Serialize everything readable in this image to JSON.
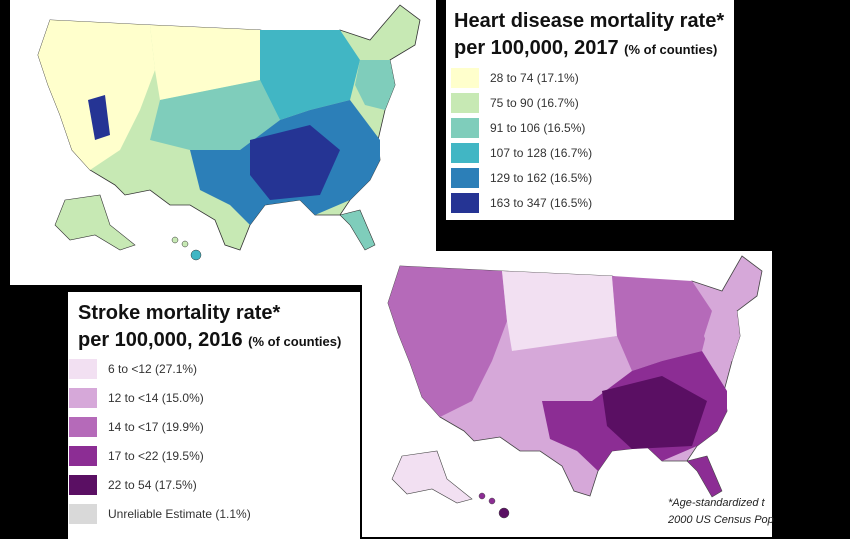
{
  "heart_legend": {
    "title_line1": "Heart disease mortality rate*",
    "title_line2": "per 100,000, 2017",
    "title_note": "(% of counties)",
    "items": [
      {
        "label": "28 to 74 (17.1%)",
        "color": "#ffffcc"
      },
      {
        "label": "75 to 90 (16.7%)",
        "color": "#c7e9b4"
      },
      {
        "label": "91 to 106 (16.5%)",
        "color": "#7fcdbb"
      },
      {
        "label": "107 to 128 (16.7%)",
        "color": "#41b6c4"
      },
      {
        "label": "129 to 162 (16.5%)",
        "color": "#2c7fb8"
      },
      {
        "label": "163 to 347 (16.5%)",
        "color": "#253494"
      }
    ]
  },
  "stroke_legend": {
    "title_line1": "Stroke mortality rate*",
    "title_line2": "per 100,000, 2016",
    "title_note": "(% of counties)",
    "items": [
      {
        "label": "6 to <12 (27.1%)",
        "color": "#f2e0f2"
      },
      {
        "label": "12 to <14 (15.0%)",
        "color": "#d6a8d9"
      },
      {
        "label": "14 to <17 (19.9%)",
        "color": "#b56ab9"
      },
      {
        "label": "17 to <22 (19.5%)",
        "color": "#8c2d94"
      },
      {
        "label": "22 to 54 (17.5%)",
        "color": "#5a0f63"
      },
      {
        "label": "Unreliable Estimate (1.1%)",
        "color": "#d9d9d9"
      }
    ]
  },
  "footnote": {
    "line1": "*Age-standardized t",
    "line2": "2000 US Census Pop"
  }
}
